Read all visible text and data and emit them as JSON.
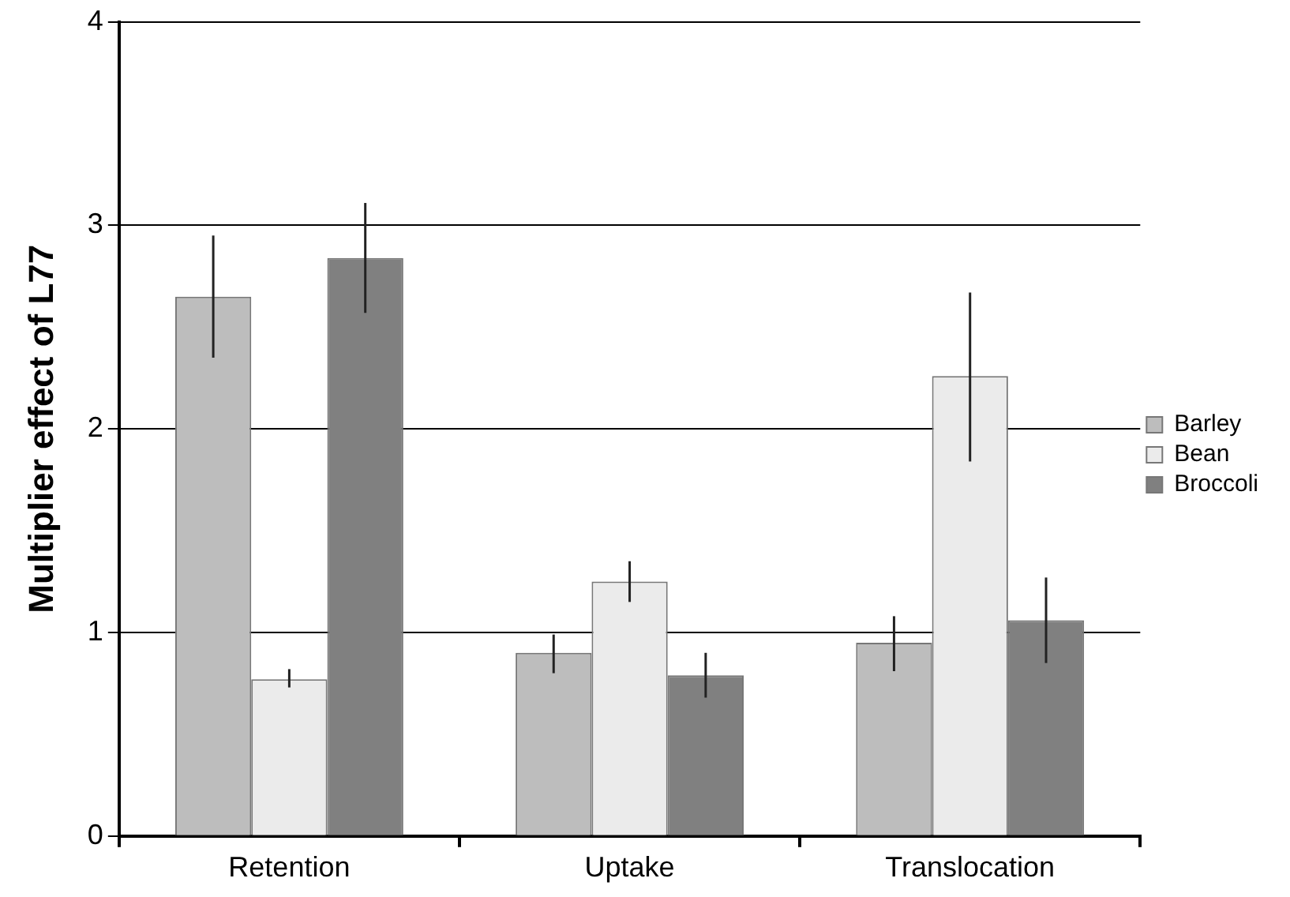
{
  "chart_data": {
    "type": "bar",
    "ylabel": "Multiplier effect of L77",
    "categories": [
      "Retention",
      "Uptake",
      "Translocation"
    ],
    "series": [
      {
        "name": "Barley",
        "color": "#bdbdbd",
        "values": [
          2.65,
          0.9,
          0.95
        ],
        "errors": [
          [
            2.35,
            2.95
          ],
          [
            0.8,
            0.99
          ],
          [
            0.81,
            1.08
          ]
        ]
      },
      {
        "name": "Bean",
        "color": "#ebebeb",
        "values": [
          0.77,
          1.25,
          2.26
        ],
        "errors": [
          [
            0.73,
            0.82
          ],
          [
            1.15,
            1.35
          ],
          [
            1.84,
            2.67
          ]
        ]
      },
      {
        "name": "Broccoli",
        "color": "#808080",
        "values": [
          2.84,
          0.79,
          1.06
        ],
        "errors": [
          [
            2.57,
            3.11
          ],
          [
            0.68,
            0.9
          ],
          [
            0.85,
            1.27
          ]
        ]
      }
    ],
    "ylim": [
      0,
      4
    ],
    "yticks": [
      0,
      1,
      2,
      3,
      4
    ],
    "grid": "y",
    "legend": "right"
  }
}
